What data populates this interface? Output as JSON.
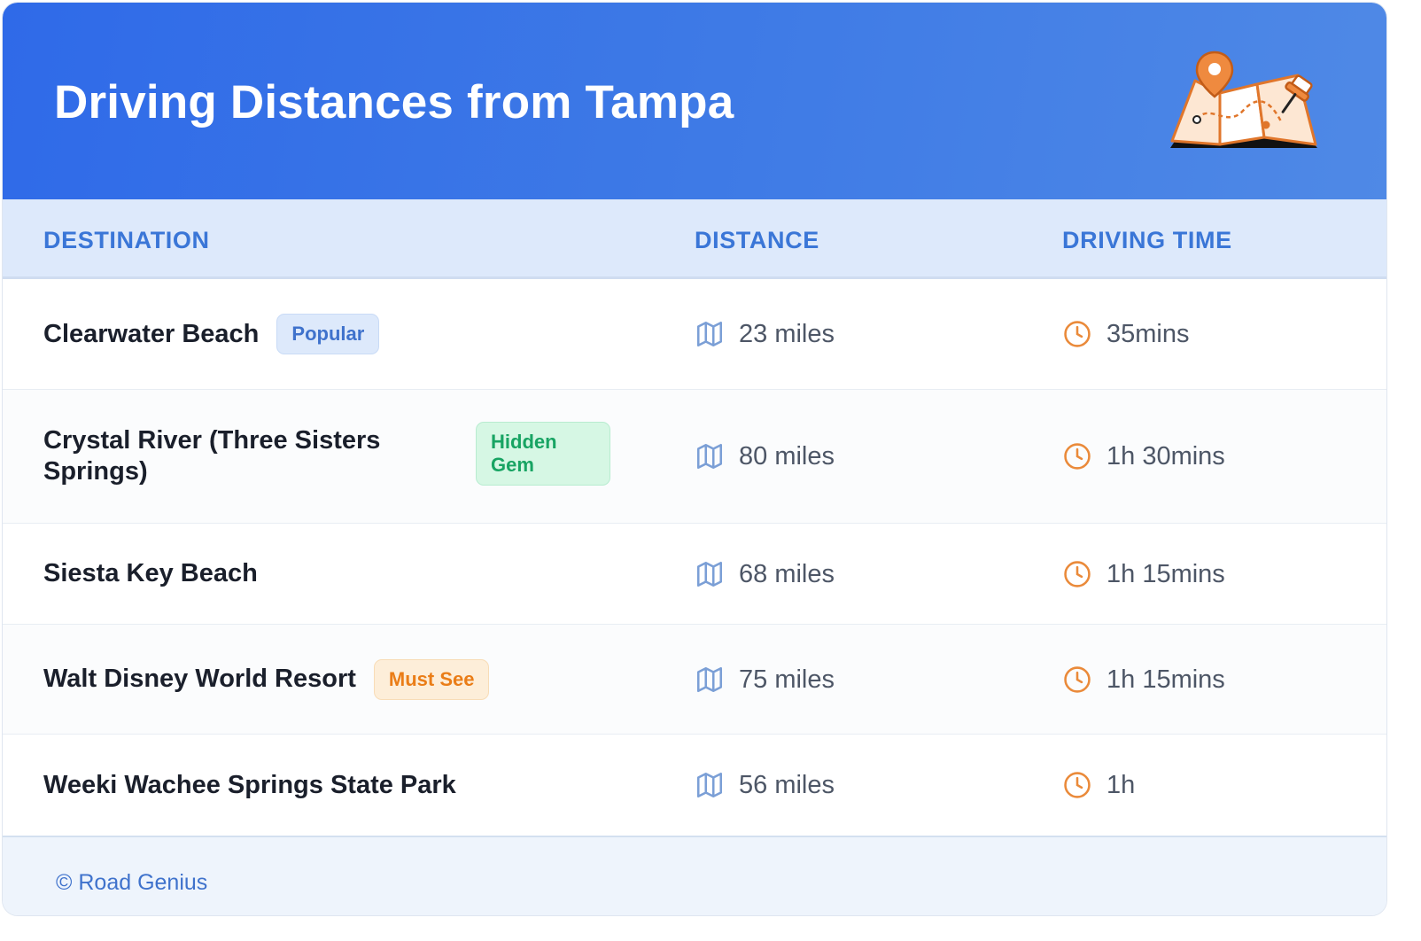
{
  "header": {
    "title": "Driving Distances from Tampa",
    "illustration": "map-with-pins-icon"
  },
  "columns": {
    "destination": "DESTINATION",
    "distance": "DISTANCE",
    "driving_time": "DRIVING TIME"
  },
  "icons": {
    "distance": "map-icon",
    "time": "clock-icon"
  },
  "colors": {
    "header_blue": "#2f6ae8",
    "accent_blue": "#3a76d7",
    "clock_orange": "#ea8a3a",
    "map_blue": "#7b9fd6"
  },
  "rows": [
    {
      "destination": "Clearwater Beach",
      "badge": "Popular",
      "distance": "23 miles",
      "time": "35mins"
    },
    {
      "destination": "Crystal River (Three Sisters Springs)",
      "badge": "Hidden Gem",
      "distance": "80 miles",
      "time": "1h 30mins"
    },
    {
      "destination": "Siesta Key Beach",
      "badge": "",
      "distance": "68 miles",
      "time": "1h 15mins"
    },
    {
      "destination": "Walt Disney World Resort",
      "badge": "Must See",
      "distance": "75 miles",
      "time": "1h 15mins"
    },
    {
      "destination": "Weeki Wachee Springs State Park",
      "badge": "",
      "distance": "56 miles",
      "time": "1h"
    }
  ],
  "footer": {
    "credit": "© Road Genius"
  }
}
